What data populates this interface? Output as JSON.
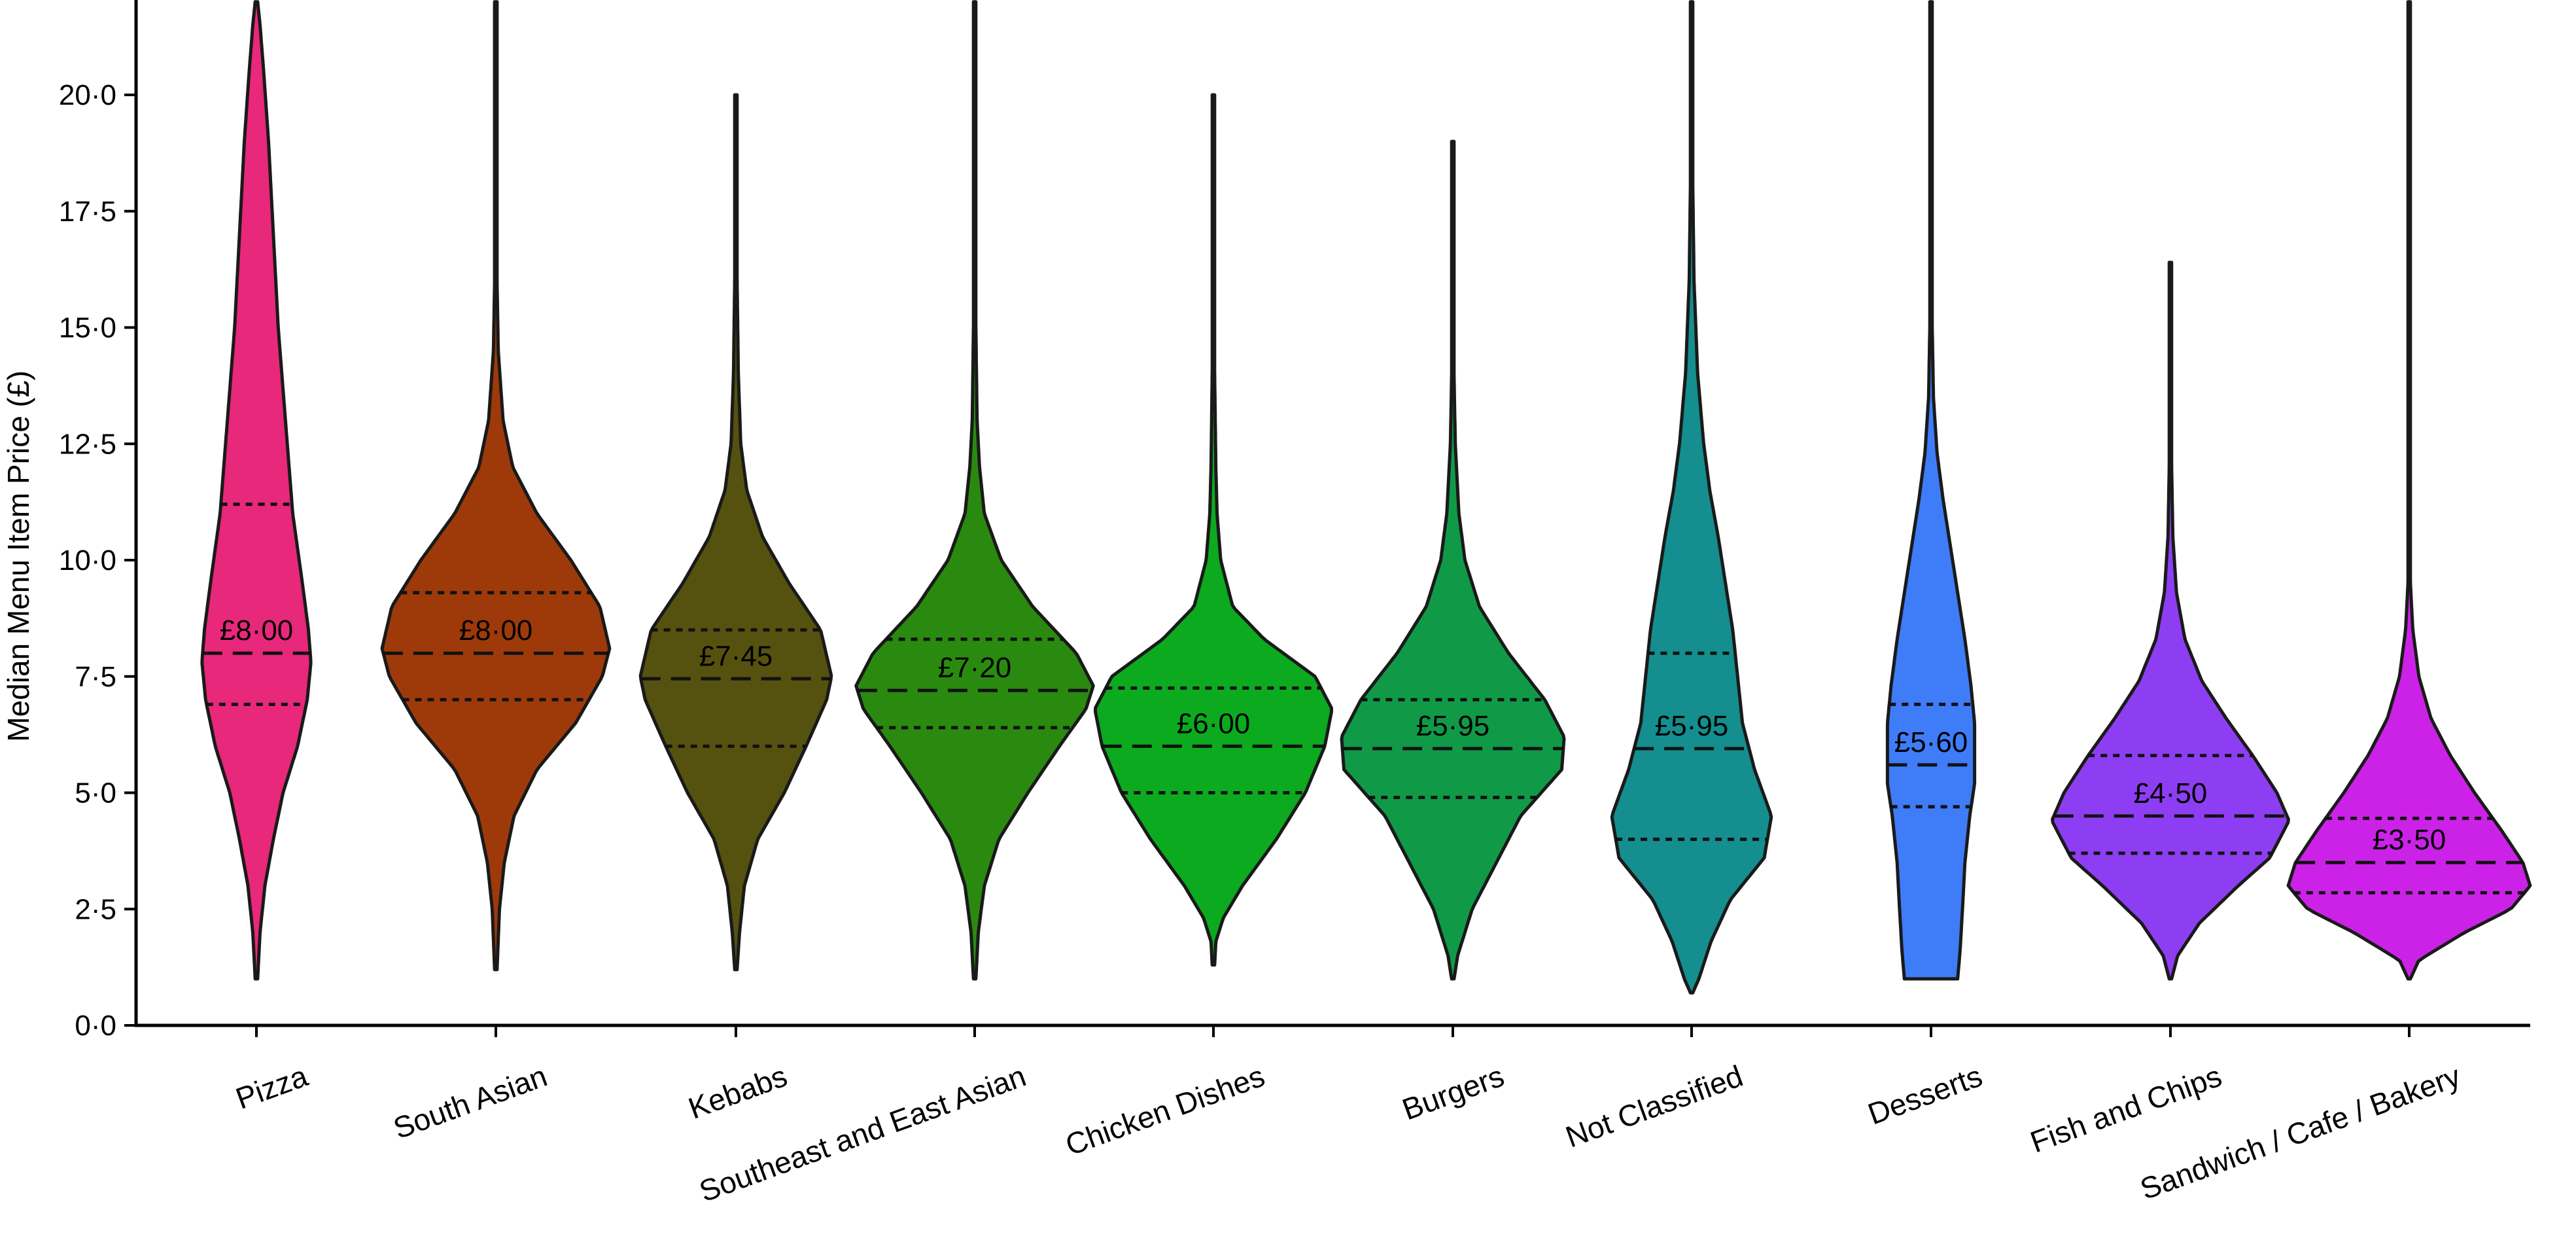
{
  "chart_data": {
    "type": "violin",
    "title": "",
    "xlabel": "",
    "ylabel": "Median Menu Item Price (£)",
    "ylim": [
      0,
      22
    ],
    "yticks": [
      0,
      2.5,
      5,
      7.5,
      10,
      12.5,
      15,
      17.5,
      20
    ],
    "ytick_labels": [
      "0·0",
      "2·5",
      "5·0",
      "7·5",
      "10·0",
      "12·5",
      "15·0",
      "17·5",
      "20·0"
    ],
    "grid": false,
    "legend": "none",
    "categories": [
      "Pizza",
      "South Asian",
      "Kebabs",
      "Southeast and East Asian",
      "Chicken Dishes",
      "Burgers",
      "Not Classified",
      "Desserts",
      "Fish and Chips",
      "Sandwich / Cafe / Bakery"
    ],
    "series": [
      {
        "category": "Pizza",
        "color": "#e8287a",
        "min": 1.0,
        "max": 22,
        "q1": 6.9,
        "median": 8.0,
        "q3": 11.2,
        "median_label": "£8·00",
        "profile": [
          [
            1.0,
            0.01
          ],
          [
            2.0,
            0.03
          ],
          [
            3.0,
            0.07
          ],
          [
            4.0,
            0.14
          ],
          [
            5.0,
            0.22
          ],
          [
            6.0,
            0.34
          ],
          [
            7.0,
            0.42
          ],
          [
            7.8,
            0.45
          ],
          [
            8.5,
            0.43
          ],
          [
            9.5,
            0.38
          ],
          [
            11.0,
            0.3
          ],
          [
            13.0,
            0.24
          ],
          [
            15.0,
            0.18
          ],
          [
            17.0,
            0.14
          ],
          [
            19.0,
            0.1
          ],
          [
            20.5,
            0.06
          ],
          [
            21.5,
            0.03
          ],
          [
            22,
            0.01
          ]
        ]
      },
      {
        "category": "South Asian",
        "color": "#9e3a0a",
        "min": 1.2,
        "max": 22,
        "q1": 7.0,
        "median": 8.0,
        "q3": 9.3,
        "median_label": "£8·00",
        "profile": [
          [
            1.2,
            0.01
          ],
          [
            2.5,
            0.03
          ],
          [
            3.5,
            0.07
          ],
          [
            4.5,
            0.15
          ],
          [
            5.5,
            0.34
          ],
          [
            6.5,
            0.66
          ],
          [
            7.5,
            0.88
          ],
          [
            8.1,
            0.94
          ],
          [
            9.0,
            0.86
          ],
          [
            10.0,
            0.62
          ],
          [
            11.0,
            0.34
          ],
          [
            12.0,
            0.14
          ],
          [
            13.0,
            0.06
          ],
          [
            14.5,
            0.02
          ],
          [
            16.0,
            0.01
          ],
          [
            22,
            0.01
          ]
        ]
      },
      {
        "category": "Kebabs",
        "color": "#55520f",
        "min": 1.2,
        "max": 20,
        "q1": 6.0,
        "median": 7.45,
        "q3": 8.5,
        "median_label": "£7·45",
        "profile": [
          [
            1.2,
            0.01
          ],
          [
            2.0,
            0.03
          ],
          [
            3.0,
            0.07
          ],
          [
            4.0,
            0.18
          ],
          [
            5.0,
            0.4
          ],
          [
            6.0,
            0.58
          ],
          [
            7.0,
            0.75
          ],
          [
            7.5,
            0.79
          ],
          [
            8.5,
            0.7
          ],
          [
            9.5,
            0.44
          ],
          [
            10.5,
            0.22
          ],
          [
            11.5,
            0.09
          ],
          [
            12.5,
            0.04
          ],
          [
            14.0,
            0.02
          ],
          [
            16.0,
            0.01
          ],
          [
            20,
            0.01
          ]
        ]
      },
      {
        "category": "Southeast and East Asian",
        "color": "#2a8a10",
        "min": 1.0,
        "max": 22,
        "q1": 6.4,
        "median": 7.2,
        "q3": 8.3,
        "median_label": "£7·20",
        "profile": [
          [
            1.0,
            0.01
          ],
          [
            2.0,
            0.03
          ],
          [
            3.0,
            0.08
          ],
          [
            4.0,
            0.2
          ],
          [
            5.0,
            0.44
          ],
          [
            6.0,
            0.7
          ],
          [
            6.8,
            0.92
          ],
          [
            7.3,
            0.98
          ],
          [
            8.0,
            0.84
          ],
          [
            9.0,
            0.48
          ],
          [
            10.0,
            0.22
          ],
          [
            11.0,
            0.08
          ],
          [
            12.0,
            0.04
          ],
          [
            13.0,
            0.02
          ],
          [
            15.0,
            0.01
          ],
          [
            22,
            0.01
          ]
        ]
      },
      {
        "category": "Chicken Dishes",
        "color": "#0caa1e",
        "min": 1.3,
        "max": 20,
        "q1": 5.0,
        "median": 6.0,
        "q3": 7.25,
        "median_label": "£6·00",
        "profile": [
          [
            1.3,
            0.01
          ],
          [
            1.8,
            0.02
          ],
          [
            2.3,
            0.08
          ],
          [
            3.0,
            0.24
          ],
          [
            4.0,
            0.52
          ],
          [
            5.0,
            0.76
          ],
          [
            6.0,
            0.92
          ],
          [
            6.8,
            0.98
          ],
          [
            7.5,
            0.84
          ],
          [
            8.3,
            0.42
          ],
          [
            9.0,
            0.16
          ],
          [
            10.0,
            0.06
          ],
          [
            11.0,
            0.03
          ],
          [
            12.0,
            0.02
          ],
          [
            14.0,
            0.01
          ],
          [
            20,
            0.01
          ]
        ]
      },
      {
        "category": "Burgers",
        "color": "#109a48",
        "min": 1.0,
        "max": 19,
        "q1": 4.9,
        "median": 5.95,
        "q3": 7.0,
        "median_label": "£5·95",
        "profile": [
          [
            1.0,
            0.01
          ],
          [
            1.5,
            0.04
          ],
          [
            2.5,
            0.16
          ],
          [
            3.5,
            0.36
          ],
          [
            4.5,
            0.56
          ],
          [
            5.5,
            0.9
          ],
          [
            6.2,
            0.92
          ],
          [
            7.0,
            0.76
          ],
          [
            8.0,
            0.46
          ],
          [
            9.0,
            0.22
          ],
          [
            10.0,
            0.1
          ],
          [
            11.0,
            0.05
          ],
          [
            12.5,
            0.02
          ],
          [
            14.0,
            0.01
          ],
          [
            19,
            0.01
          ]
        ]
      },
      {
        "category": "Not Classified",
        "color": "#148e8e",
        "min": 0.7,
        "max": 22,
        "q1": 4.0,
        "median": 5.95,
        "q3": 8.0,
        "median_label": "£5·95",
        "profile": [
          [
            0.7,
            0.01
          ],
          [
            1.0,
            0.06
          ],
          [
            1.8,
            0.16
          ],
          [
            2.7,
            0.32
          ],
          [
            3.6,
            0.6
          ],
          [
            4.5,
            0.66
          ],
          [
            5.5,
            0.52
          ],
          [
            6.5,
            0.42
          ],
          [
            7.5,
            0.38
          ],
          [
            8.5,
            0.34
          ],
          [
            9.5,
            0.28
          ],
          [
            10.5,
            0.22
          ],
          [
            11.5,
            0.15
          ],
          [
            12.5,
            0.1
          ],
          [
            14.0,
            0.05
          ],
          [
            16.0,
            0.02
          ],
          [
            18.0,
            0.01
          ],
          [
            22,
            0.01
          ]
        ]
      },
      {
        "category": "Desserts",
        "color": "#3f7cf8",
        "min": 1.0,
        "max": 22,
        "q1": 4.7,
        "median": 5.6,
        "q3": 6.9,
        "median_label": "£5·60",
        "profile": [
          [
            1.0,
            0.22
          ],
          [
            1.6,
            0.24
          ],
          [
            2.5,
            0.26
          ],
          [
            3.5,
            0.28
          ],
          [
            4.5,
            0.32
          ],
          [
            5.2,
            0.36
          ],
          [
            5.8,
            0.36
          ],
          [
            6.5,
            0.36
          ],
          [
            7.3,
            0.33
          ],
          [
            8.3,
            0.28
          ],
          [
            9.3,
            0.22
          ],
          [
            10.3,
            0.16
          ],
          [
            11.3,
            0.1
          ],
          [
            12.3,
            0.05
          ],
          [
            13.5,
            0.02
          ],
          [
            15.0,
            0.01
          ],
          [
            22,
            0.01
          ]
        ]
      },
      {
        "category": "Fish and Chips",
        "color": "#8e3ef2",
        "min": 1.0,
        "max": 16.4,
        "q1": 3.7,
        "median": 4.5,
        "q3": 5.8,
        "median_label": "£4·50",
        "profile": [
          [
            1.0,
            0.01
          ],
          [
            1.5,
            0.06
          ],
          [
            2.2,
            0.24
          ],
          [
            3.0,
            0.56
          ],
          [
            3.6,
            0.82
          ],
          [
            4.4,
            0.98
          ],
          [
            5.0,
            0.88
          ],
          [
            5.8,
            0.68
          ],
          [
            6.6,
            0.46
          ],
          [
            7.4,
            0.26
          ],
          [
            8.3,
            0.12
          ],
          [
            9.3,
            0.05
          ],
          [
            10.5,
            0.02
          ],
          [
            12.0,
            0.01
          ],
          [
            16.4,
            0.01
          ]
        ]
      },
      {
        "category": "Sandwich / Cafe / Bakery",
        "color": "#cc22e8",
        "min": 1.0,
        "max": 22,
        "q1": 2.85,
        "median": 3.5,
        "q3": 4.45,
        "median_label": "£3·50",
        "profile": [
          [
            1.0,
            0.01
          ],
          [
            1.4,
            0.08
          ],
          [
            2.0,
            0.46
          ],
          [
            2.5,
            0.84
          ],
          [
            3.0,
            1.0
          ],
          [
            3.5,
            0.94
          ],
          [
            4.2,
            0.76
          ],
          [
            5.0,
            0.54
          ],
          [
            5.8,
            0.34
          ],
          [
            6.6,
            0.18
          ],
          [
            7.5,
            0.08
          ],
          [
            8.5,
            0.03
          ],
          [
            9.5,
            0.01
          ],
          [
            22,
            0.01
          ]
        ]
      }
    ]
  }
}
